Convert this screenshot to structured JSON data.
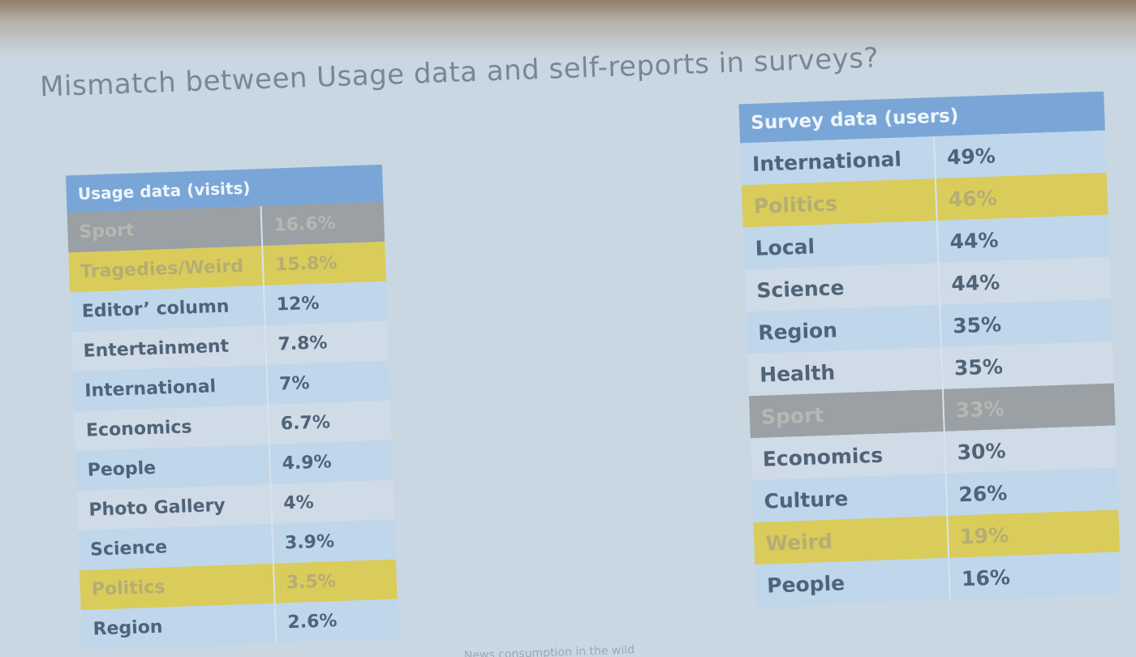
{
  "slide": {
    "title": "Mismatch between Usage data and self-reports in surveys?",
    "footer": "News consumption in the wild"
  },
  "usage_table": {
    "header": "Usage data (visits)",
    "rows": [
      {
        "category": "Sport",
        "value": "16.6%",
        "highlight": "gray"
      },
      {
        "category": "Tragedies/Weird",
        "value": "15.8%",
        "highlight": "yellow"
      },
      {
        "category": "Editor’ column",
        "value": "12%",
        "highlight": "none"
      },
      {
        "category": "Entertainment",
        "value": "7.8%",
        "highlight": "none"
      },
      {
        "category": "International",
        "value": "7%",
        "highlight": "none"
      },
      {
        "category": "Economics",
        "value": "6.7%",
        "highlight": "none"
      },
      {
        "category": "People",
        "value": "4.9%",
        "highlight": "none"
      },
      {
        "category": "Photo Gallery",
        "value": "4%",
        "highlight": "none"
      },
      {
        "category": "Science",
        "value": "3.9%",
        "highlight": "none"
      },
      {
        "category": "Politics",
        "value": "3.5%",
        "highlight": "yellow"
      },
      {
        "category": "Region",
        "value": "2.6%",
        "highlight": "none"
      }
    ]
  },
  "survey_table": {
    "header": "Survey data (users)",
    "rows": [
      {
        "category": "International",
        "value": "49%",
        "highlight": "none"
      },
      {
        "category": "Politics",
        "value": "46%",
        "highlight": "yellow"
      },
      {
        "category": "Local",
        "value": "44%",
        "highlight": "none"
      },
      {
        "category": "Science",
        "value": "44%",
        "highlight": "none"
      },
      {
        "category": "Region",
        "value": "35%",
        "highlight": "none"
      },
      {
        "category": "Health",
        "value": "35%",
        "highlight": "none"
      },
      {
        "category": "Sport",
        "value": "33%",
        "highlight": "gray"
      },
      {
        "category": "Economics",
        "value": "30%",
        "highlight": "none"
      },
      {
        "category": "Culture",
        "value": "26%",
        "highlight": "none"
      },
      {
        "category": "Weird",
        "value": "19%",
        "highlight": "yellow"
      },
      {
        "category": "People",
        "value": "16%",
        "highlight": "none"
      }
    ]
  },
  "colors": {
    "header_blue": "#79a6d6",
    "row_light": "#bfd6eb",
    "row_plain": "#cfdbe6",
    "highlight_gray": "#9aa0a3",
    "highlight_yellow": "#d9cc5a"
  }
}
